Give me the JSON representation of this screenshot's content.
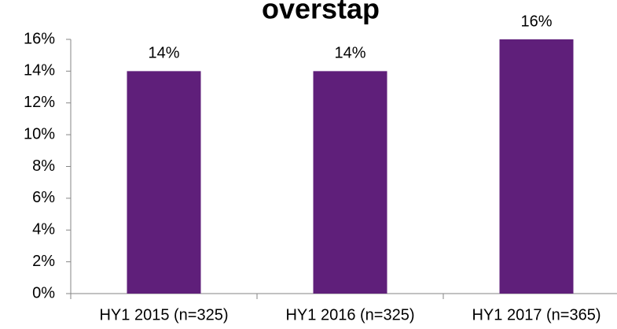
{
  "chart_data": {
    "type": "bar",
    "title": "overstap",
    "categories": [
      "HY1 2015 (n=325)",
      "HY1 2016 (n=325)",
      "HY1 2017 (n=365)"
    ],
    "values": [
      14,
      14,
      16
    ],
    "value_labels": [
      "14%",
      "14%",
      "16%"
    ],
    "color": "#5f1f7a",
    "ylim": [
      0,
      16
    ],
    "yticks": [
      {
        "value": 0,
        "label": "0%"
      },
      {
        "value": 2,
        "label": "2%"
      },
      {
        "value": 4,
        "label": "4%"
      },
      {
        "value": 6,
        "label": "6%"
      },
      {
        "value": 8,
        "label": "8%"
      },
      {
        "value": 10,
        "label": "10%"
      },
      {
        "value": 12,
        "label": "12%"
      },
      {
        "value": 14,
        "label": "14%"
      },
      {
        "value": 16,
        "label": "16%"
      }
    ],
    "grid": false
  }
}
